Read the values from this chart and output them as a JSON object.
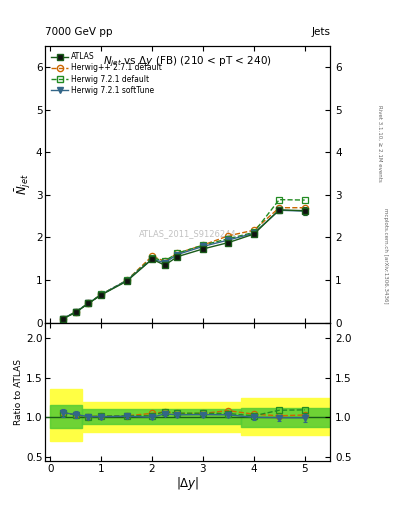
{
  "title_top": "7000 GeV pp",
  "title_right": "Jets",
  "plot_title_display": "$N_{jet}$ vs $\\Delta y$ (FB) (210 < pT < 240)",
  "xlabel": "$|\\Delta y|$",
  "ylabel_main": "$\\bar{N}_{jet}$",
  "ylabel_ratio": "Ratio to ATLAS",
  "watermark": "ATLAS_2011_S9126244",
  "right_label": "mcplots.cern.ch [arXiv:1306.3436]",
  "right_label2": "Rivet 3.1.10, ≥ 2.1M events",
  "xlim": [
    -0.1,
    5.5
  ],
  "ylim_main": [
    0,
    6.5
  ],
  "ylim_ratio": [
    0.45,
    2.2
  ],
  "atlas_x": [
    0.25,
    0.5,
    0.75,
    1.0,
    1.5,
    2.0,
    2.25,
    2.5,
    3.0,
    3.5,
    4.0,
    4.5,
    5.0
  ],
  "atlas_y": [
    0.09,
    0.24,
    0.45,
    0.65,
    0.97,
    1.49,
    1.35,
    1.55,
    1.73,
    1.88,
    2.08,
    2.65,
    2.63
  ],
  "atlas_yerr": [
    0.004,
    0.006,
    0.008,
    0.01,
    0.015,
    0.025,
    0.03,
    0.03,
    0.035,
    0.04,
    0.05,
    0.07,
    0.09
  ],
  "herwig_pp_y": [
    0.095,
    0.248,
    0.455,
    0.66,
    0.99,
    1.56,
    1.44,
    1.63,
    1.82,
    2.04,
    2.17,
    2.7,
    2.7
  ],
  "herwig72_def_y": [
    0.095,
    0.248,
    0.455,
    0.66,
    0.99,
    1.52,
    1.45,
    1.63,
    1.82,
    1.97,
    2.12,
    2.89,
    2.88
  ],
  "herwig72_soft_y": [
    0.095,
    0.248,
    0.455,
    0.655,
    0.985,
    1.49,
    1.41,
    1.6,
    1.79,
    1.94,
    2.1,
    2.64,
    2.62
  ],
  "herwig72_soft_yerr": [
    0.004,
    0.006,
    0.008,
    0.01,
    0.015,
    0.025,
    0.03,
    0.03,
    0.035,
    0.04,
    0.05,
    0.07,
    0.09
  ],
  "ratio_herwig_pp": [
    1.06,
    1.03,
    1.01,
    1.015,
    1.02,
    1.05,
    1.07,
    1.05,
    1.05,
    1.085,
    1.04,
    1.02,
    1.03
  ],
  "ratio_herwig72_def": [
    1.06,
    1.03,
    1.01,
    1.015,
    1.02,
    1.02,
    1.074,
    1.052,
    1.052,
    1.048,
    1.02,
    1.09,
    1.095
  ],
  "ratio_herwig72_soft": [
    1.06,
    1.035,
    1.01,
    1.008,
    1.015,
    1.0,
    1.044,
    1.032,
    1.035,
    1.032,
    1.0,
    0.996,
    0.995
  ],
  "ratio_herwig72_soft_yerr": [
    0.05,
    0.04,
    0.025,
    0.025,
    0.022,
    0.022,
    0.03,
    0.025,
    0.025,
    0.025,
    0.028,
    0.038,
    0.048
  ],
  "color_atlas": "#1a5c1a",
  "color_herwig_pp": "#cc6600",
  "color_herwig72_def": "#228B22",
  "color_herwig72_soft": "#336688",
  "band_yellow": "#ffff44",
  "band_green": "#55cc33",
  "xticks": [
    0,
    1,
    2,
    3,
    4,
    5
  ],
  "yticks_main": [
    0,
    1,
    2,
    3,
    4,
    5,
    6
  ],
  "yticks_ratio": [
    0.5,
    1.0,
    1.5,
    2.0
  ],
  "band_segments": [
    {
      "xmin": 0.0,
      "xmax": 0.625,
      "ymin_y": 0.7,
      "ymax_y": 1.36,
      "ymin_g": 0.87,
      "ymax_g": 1.16
    },
    {
      "xmin": 0.625,
      "xmax": 3.75,
      "ymin_y": 0.82,
      "ymax_y": 1.2,
      "ymin_g": 0.92,
      "ymax_g": 1.1
    },
    {
      "xmin": 3.75,
      "xmax": 5.5,
      "ymin_y": 0.78,
      "ymax_y": 1.24,
      "ymin_g": 0.88,
      "ymax_g": 1.12
    }
  ]
}
